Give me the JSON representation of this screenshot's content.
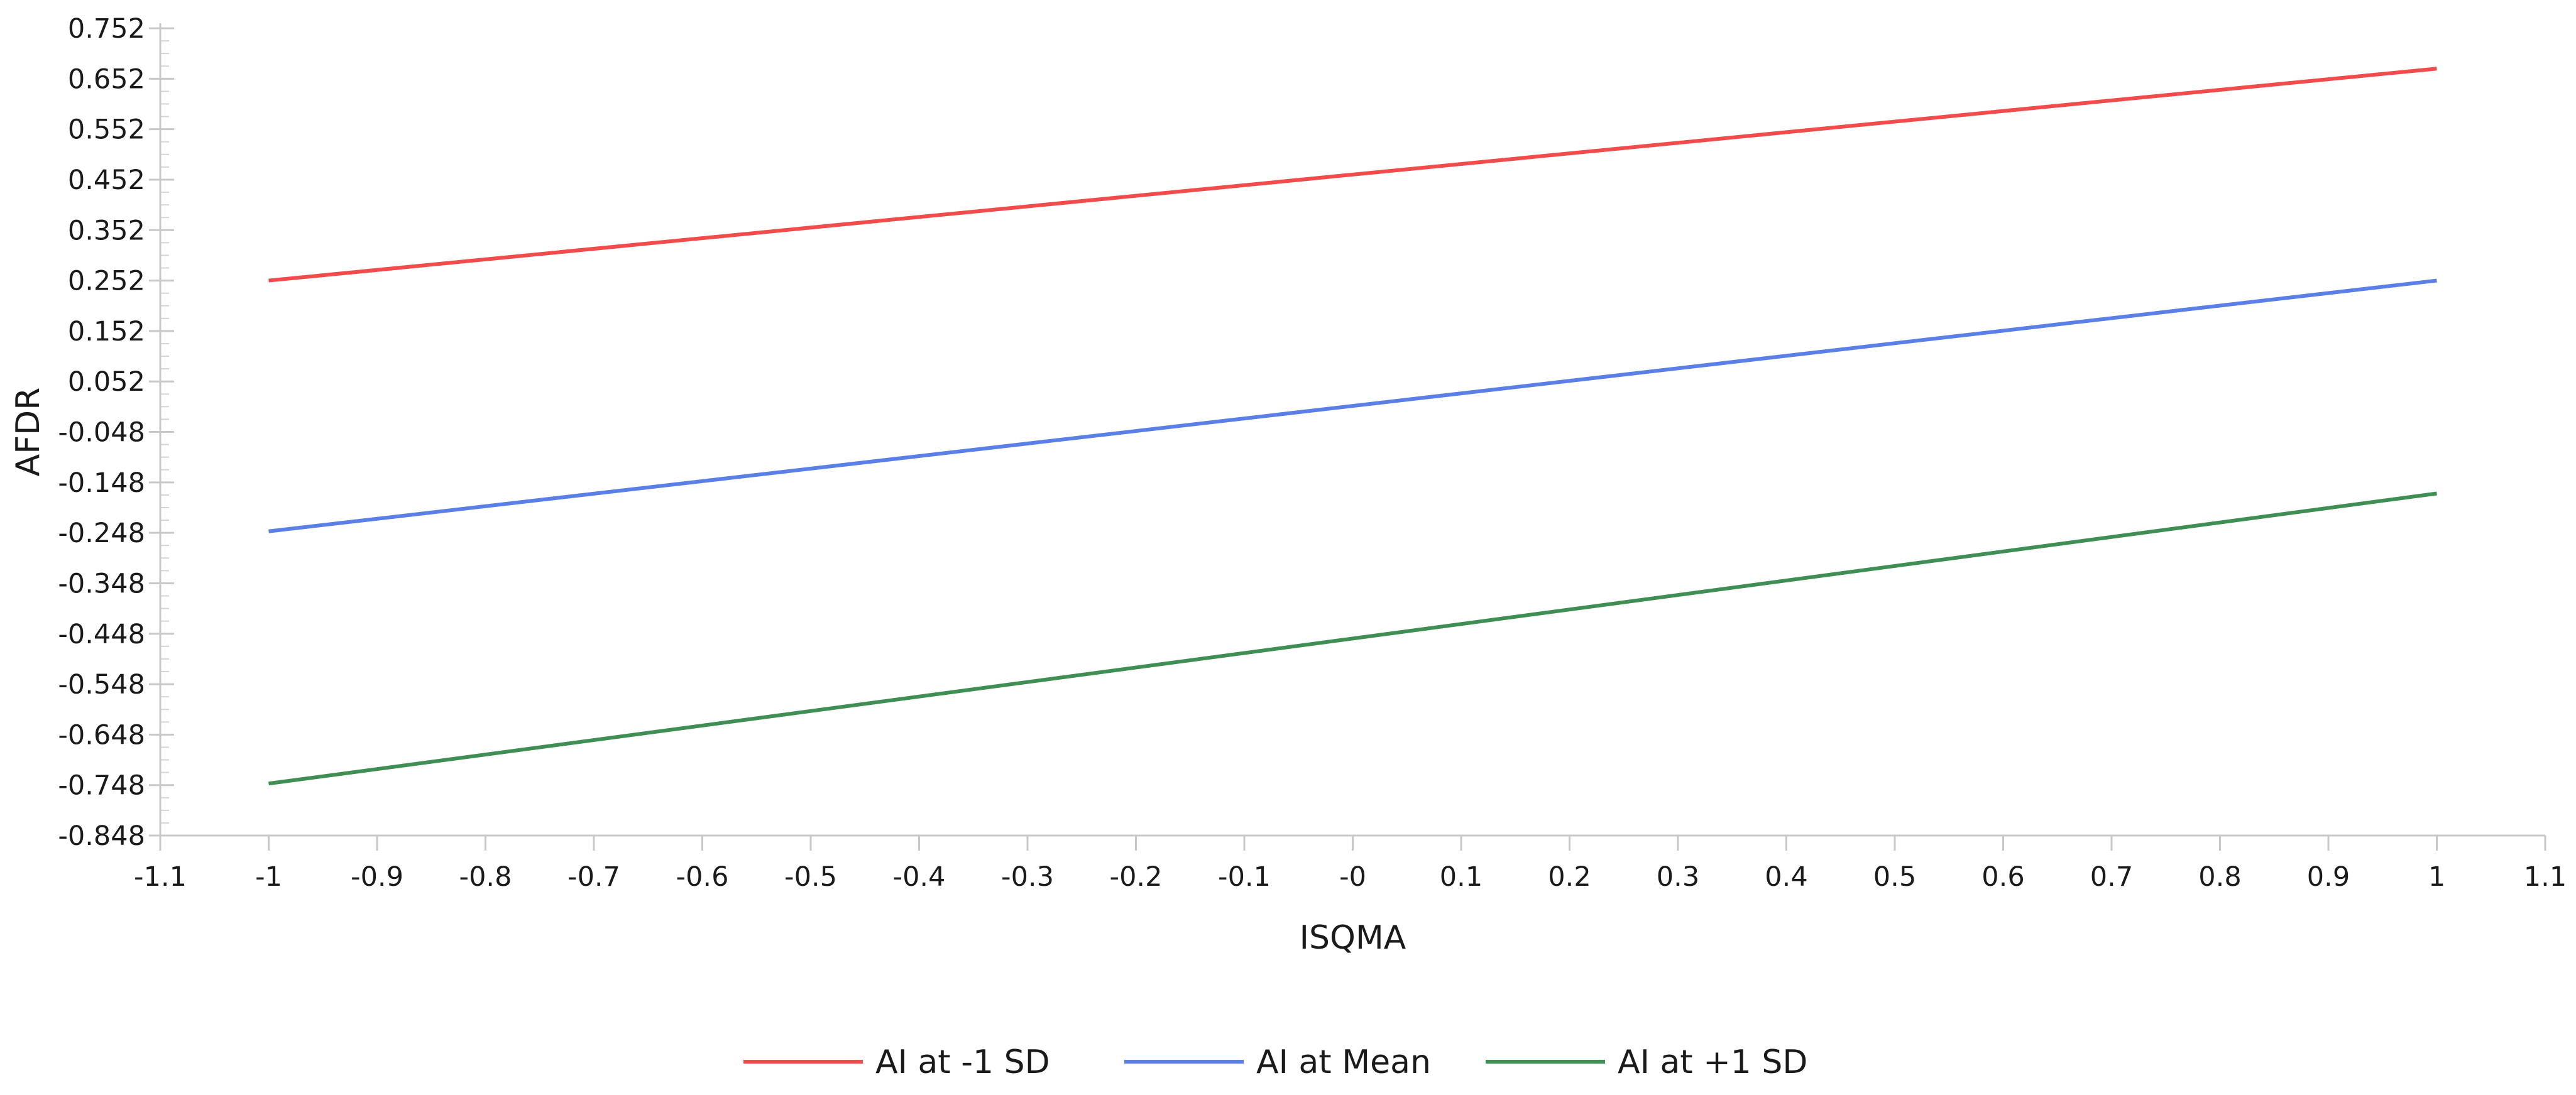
{
  "chart_data": {
    "type": "line",
    "title": "",
    "xlabel": "ISQMA",
    "ylabel": "AFDR",
    "xlim": [
      -1.1,
      1.1
    ],
    "ylim": [
      -0.848,
      0.752
    ],
    "x_ticks": [
      "-1.1",
      "-1",
      "-0.9",
      "-0.8",
      "-0.7",
      "-0.6",
      "-0.5",
      "-0.4",
      "-0.3",
      "-0.2",
      "-0.1",
      "-0",
      "0.1",
      "0.2",
      "0.3",
      "0.4",
      "0.5",
      "0.6",
      "0.7",
      "0.8",
      "0.9",
      "1",
      "1.1"
    ],
    "y_ticks": [
      "0.752",
      "0.652",
      "0.552",
      "0.452",
      "0.352",
      "0.252",
      "0.152",
      "0.052",
      "-0.048",
      "-0.148",
      "-0.248",
      "-0.348",
      "-0.448",
      "-0.548",
      "-0.648",
      "-0.748",
      "-0.848"
    ],
    "grid": false,
    "legend_position": "bottom",
    "series": [
      {
        "name": "AI at -1 SD",
        "color": "#f24b4b",
        "x": [
          -1,
          1
        ],
        "y": [
          0.252,
          0.672
        ]
      },
      {
        "name": "AI at Mean",
        "color": "#5a7fe6",
        "x": [
          -1,
          1
        ],
        "y": [
          -0.245,
          0.252
        ]
      },
      {
        "name": "AI at +1 SD",
        "color": "#3f8f55",
        "x": [
          -1,
          1
        ],
        "y": [
          -0.745,
          -0.17
        ]
      }
    ]
  }
}
